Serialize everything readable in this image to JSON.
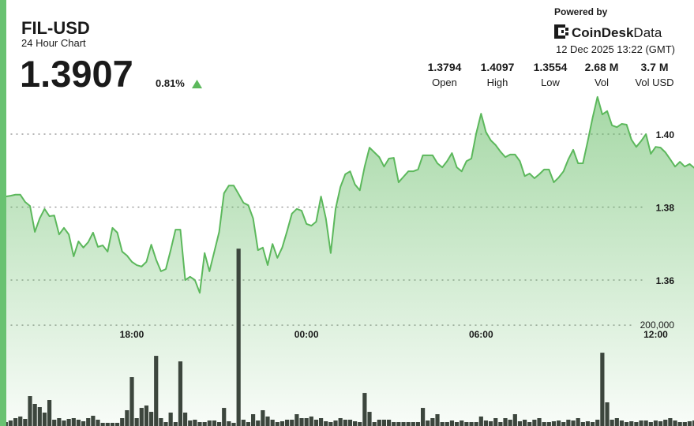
{
  "header": {
    "title": "FIL-USD",
    "subtitle": "24 Hour Chart",
    "price": "1.3907",
    "change": "0.81%",
    "powered_by": "Powered by",
    "brand_bold": "CoinDesk",
    "brand_light": "Data",
    "timestamp": "12 Dec 2025 13:22 (GMT)",
    "stats": [
      {
        "value": "1.3794",
        "label": "Open"
      },
      {
        "value": "1.4097",
        "label": "High"
      },
      {
        "value": "1.3554",
        "label": "Low"
      },
      {
        "value": "2.68 M",
        "label": "Vol"
      },
      {
        "value": "3.7 M",
        "label": "Vol USD"
      }
    ]
  },
  "chart_data": {
    "type": "line",
    "categories": [
      null,
      null,
      null,
      null,
      null,
      null,
      null,
      null,
      null,
      null,
      null,
      null,
      null,
      null,
      null,
      null,
      null,
      null,
      null,
      null,
      null,
      null,
      null,
      null,
      null,
      null,
      "18:00",
      null,
      null,
      null,
      null,
      null,
      null,
      null,
      null,
      null,
      null,
      null,
      null,
      null,
      null,
      null,
      null,
      null,
      null,
      null,
      null,
      null,
      null,
      null,
      null,
      null,
      null,
      null,
      null,
      null,
      null,
      null,
      null,
      null,
      null,
      null,
      "00:00",
      null,
      null,
      null,
      null,
      null,
      null,
      null,
      null,
      null,
      null,
      null,
      null,
      null,
      null,
      null,
      null,
      null,
      null,
      null,
      null,
      null,
      null,
      null,
      null,
      null,
      null,
      null,
      null,
      null,
      null,
      null,
      null,
      null,
      null,
      null,
      "06:00",
      null,
      null,
      null,
      null,
      null,
      null,
      null,
      null,
      null,
      null,
      null,
      null,
      null,
      null,
      null,
      null,
      null,
      null,
      null,
      null,
      null,
      null,
      null,
      null,
      null,
      null,
      null,
      null,
      null,
      null,
      null,
      null,
      null,
      null,
      null,
      "12:00",
      null,
      null,
      null,
      null,
      null,
      null,
      null,
      null
    ],
    "series": [
      {
        "type": "line",
        "color": "#5cb85c",
        "values": [
          1.3829,
          1.3831,
          1.3834,
          1.3834,
          1.3814,
          1.3803,
          1.3732,
          1.3769,
          1.3795,
          1.3775,
          1.3777,
          1.3725,
          1.3743,
          1.3725,
          1.3665,
          1.3706,
          1.3689,
          1.3704,
          1.373,
          1.3691,
          1.3695,
          1.3678,
          1.3743,
          1.373,
          1.3678,
          1.3667,
          1.365,
          1.3641,
          1.3637,
          1.365,
          1.3697,
          1.3656,
          1.3624,
          1.363,
          1.3682,
          1.3738,
          1.3738,
          1.36,
          1.3609,
          1.36,
          1.3565,
          1.3674,
          1.3624,
          1.3678,
          1.3732,
          1.3838,
          1.3859,
          1.3859,
          1.3836,
          1.3812,
          1.3805,
          1.3769,
          1.3682,
          1.3689,
          1.3641,
          1.3699,
          1.3661,
          1.3689,
          1.3734,
          1.3782,
          1.3795,
          1.379,
          1.3754,
          1.3749,
          1.376,
          1.3829,
          1.3769,
          1.3674,
          1.3795,
          1.3855,
          1.389,
          1.3898,
          1.3862,
          1.3846,
          1.3911,
          1.3963,
          1.395,
          1.3937,
          1.3911,
          1.3933,
          1.3935,
          1.3868,
          1.3883,
          1.3898,
          1.3898,
          1.3903,
          1.3942,
          1.3942,
          1.3942,
          1.392,
          1.3909,
          1.3926,
          1.3948,
          1.3909,
          1.3898,
          1.3926,
          1.3933,
          1.4002,
          1.4056,
          1.4006,
          1.3983,
          1.397,
          1.3952,
          1.3937,
          1.3944,
          1.3944,
          1.3926,
          1.3885,
          1.3892,
          1.3879,
          1.389,
          1.3903,
          1.3903,
          1.3868,
          1.3881,
          1.3898,
          1.3931,
          1.3957,
          1.392,
          1.392,
          1.3981,
          1.4045,
          1.4102,
          1.4054,
          1.4063,
          1.4024,
          1.4019,
          1.4028,
          1.4026,
          1.3985,
          1.3965,
          1.3981,
          1.4,
          1.3946,
          1.3965,
          1.3963,
          1.395,
          1.3931,
          1.3911,
          1.3924,
          1.3911,
          1.3918,
          1.3907
        ]
      },
      {
        "type": "bar",
        "axis": "y2",
        "color": "#3c463d",
        "values": [
          7800,
          10900,
          15600,
          18800,
          14100,
          59400,
          43800,
          37500,
          26600,
          51600,
          12500,
          15600,
          10900,
          14100,
          15600,
          12500,
          9400,
          15600,
          20300,
          12500,
          6300,
          6300,
          6300,
          6300,
          15600,
          31300,
          96900,
          15600,
          35900,
          40600,
          28100,
          139100,
          15600,
          7800,
          26600,
          7800,
          128100,
          26600,
          10900,
          12500,
          7800,
          7800,
          10900,
          10900,
          7800,
          35900,
          9400,
          6300,
          351600,
          12500,
          7800,
          23400,
          10900,
          31300,
          18800,
          12500,
          7800,
          9400,
          12500,
          12500,
          23400,
          15600,
          15600,
          18800,
          12500,
          15600,
          9400,
          7800,
          10900,
          15600,
          12500,
          12500,
          9400,
          7800,
          65600,
          28100,
          7800,
          12500,
          12500,
          12500,
          7800,
          7800,
          7800,
          7800,
          7800,
          7800,
          35900,
          10900,
          15600,
          23400,
          7800,
          7800,
          10900,
          7800,
          10900,
          7800,
          7800,
          7800,
          18800,
          10900,
          9400,
          15600,
          7800,
          15600,
          12500,
          23400,
          9400,
          12500,
          7800,
          12500,
          15600,
          7800,
          7800,
          9400,
          10900,
          7800,
          12500,
          10900,
          15600,
          7800,
          9400,
          7800,
          12500,
          145300,
          46900,
          12500,
          15600,
          10900,
          7800,
          9400,
          7800,
          10900,
          10900,
          7800,
          10900,
          9400,
          12500,
          15600,
          10900,
          7800,
          7800,
          9400,
          10900
        ]
      }
    ],
    "ylim": [
      1.32,
      1.414
    ],
    "yticks": [
      1.36,
      1.38,
      {
        "value": 1.4,
        "label": "1.40"
      }
    ],
    "y2lim": [
      0,
      680000
    ],
    "y2ticks": [
      {
        "value": 200000,
        "label": "200,000"
      }
    ],
    "grid": true
  }
}
